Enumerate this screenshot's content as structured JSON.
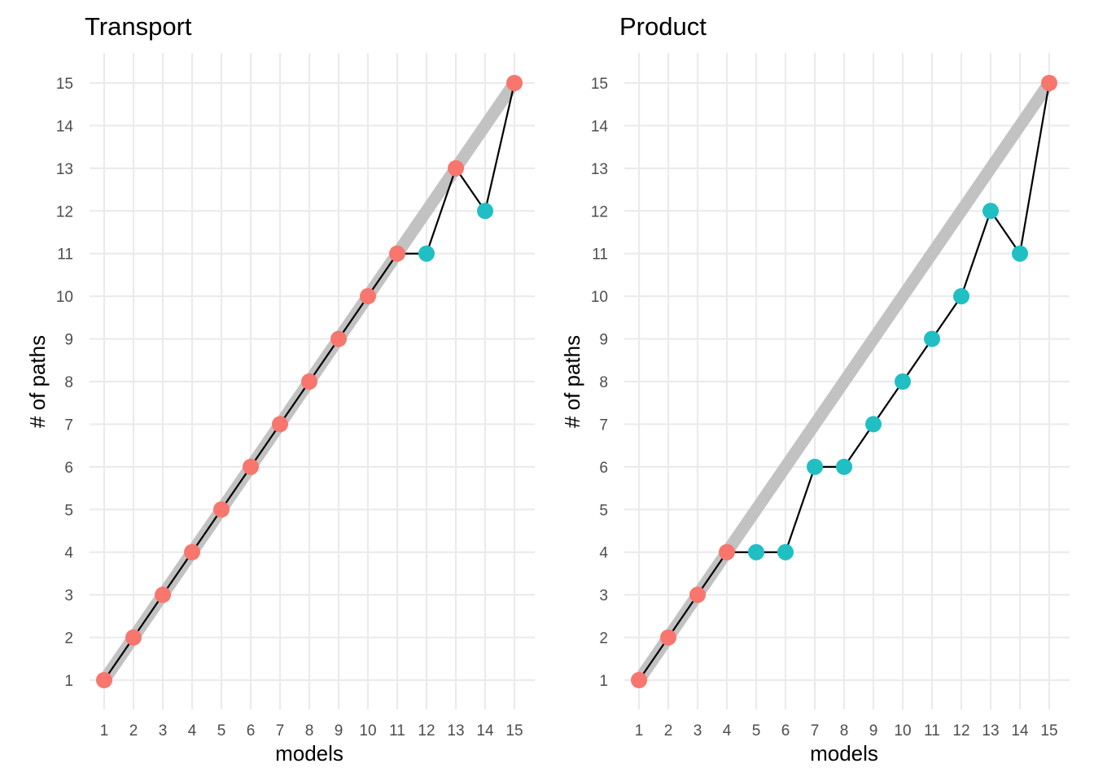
{
  "chart_data": [
    {
      "type": "line",
      "title": "Transport",
      "xlabel": "models",
      "ylabel": "# of paths",
      "x_ticks": [
        "1",
        "2",
        "3",
        "4",
        "5",
        "6",
        "7",
        "8",
        "9",
        "10",
        "11",
        "12",
        "13",
        "14",
        "15"
      ],
      "y_ticks": [
        "1",
        "2",
        "3",
        "4",
        "5",
        "6",
        "7",
        "8",
        "9",
        "10",
        "11",
        "12",
        "13",
        "14",
        "15"
      ],
      "xlim": [
        1,
        15
      ],
      "ylim": [
        1,
        15
      ],
      "grid": true,
      "legend": "none",
      "reference_line": {
        "from": [
          1,
          1
        ],
        "to": [
          15,
          15
        ],
        "color": "#c2c2c2"
      },
      "series": [
        {
          "line_color": "#000000",
          "x": [
            1,
            2,
            3,
            4,
            5,
            6,
            7,
            8,
            9,
            10,
            11,
            12,
            13,
            14,
            15
          ],
          "y": [
            1,
            2,
            3,
            4,
            5,
            6,
            7,
            8,
            9,
            10,
            11,
            11,
            13,
            12,
            15
          ],
          "point_colors": [
            "#f8766d",
            "#f8766d",
            "#f8766d",
            "#f8766d",
            "#f8766d",
            "#f8766d",
            "#f8766d",
            "#f8766d",
            "#f8766d",
            "#f8766d",
            "#f8766d",
            "#1fbfc4",
            "#f8766d",
            "#1fbfc4",
            "#f8766d"
          ]
        }
      ]
    },
    {
      "type": "line",
      "title": "Product",
      "xlabel": "models",
      "ylabel": "# of paths",
      "x_ticks": [
        "1",
        "2",
        "3",
        "4",
        "5",
        "6",
        "7",
        "8",
        "9",
        "10",
        "11",
        "12",
        "13",
        "14",
        "15"
      ],
      "y_ticks": [
        "1",
        "2",
        "3",
        "4",
        "5",
        "6",
        "7",
        "8",
        "9",
        "10",
        "11",
        "12",
        "13",
        "14",
        "15"
      ],
      "xlim": [
        1,
        15
      ],
      "ylim": [
        1,
        15
      ],
      "grid": true,
      "legend": "none",
      "reference_line": {
        "from": [
          1,
          1
        ],
        "to": [
          15,
          15
        ],
        "color": "#c2c2c2"
      },
      "series": [
        {
          "line_color": "#000000",
          "x": [
            1,
            2,
            3,
            4,
            5,
            6,
            7,
            8,
            9,
            10,
            11,
            12,
            13,
            14,
            15
          ],
          "y": [
            1,
            2,
            3,
            4,
            4,
            4,
            6,
            6,
            7,
            8,
            9,
            10,
            12,
            11,
            15
          ],
          "point_colors": [
            "#f8766d",
            "#f8766d",
            "#f8766d",
            "#f8766d",
            "#1fbfc4",
            "#1fbfc4",
            "#1fbfc4",
            "#1fbfc4",
            "#1fbfc4",
            "#1fbfc4",
            "#1fbfc4",
            "#1fbfc4",
            "#1fbfc4",
            "#1fbfc4",
            "#f8766d"
          ]
        }
      ]
    }
  ]
}
